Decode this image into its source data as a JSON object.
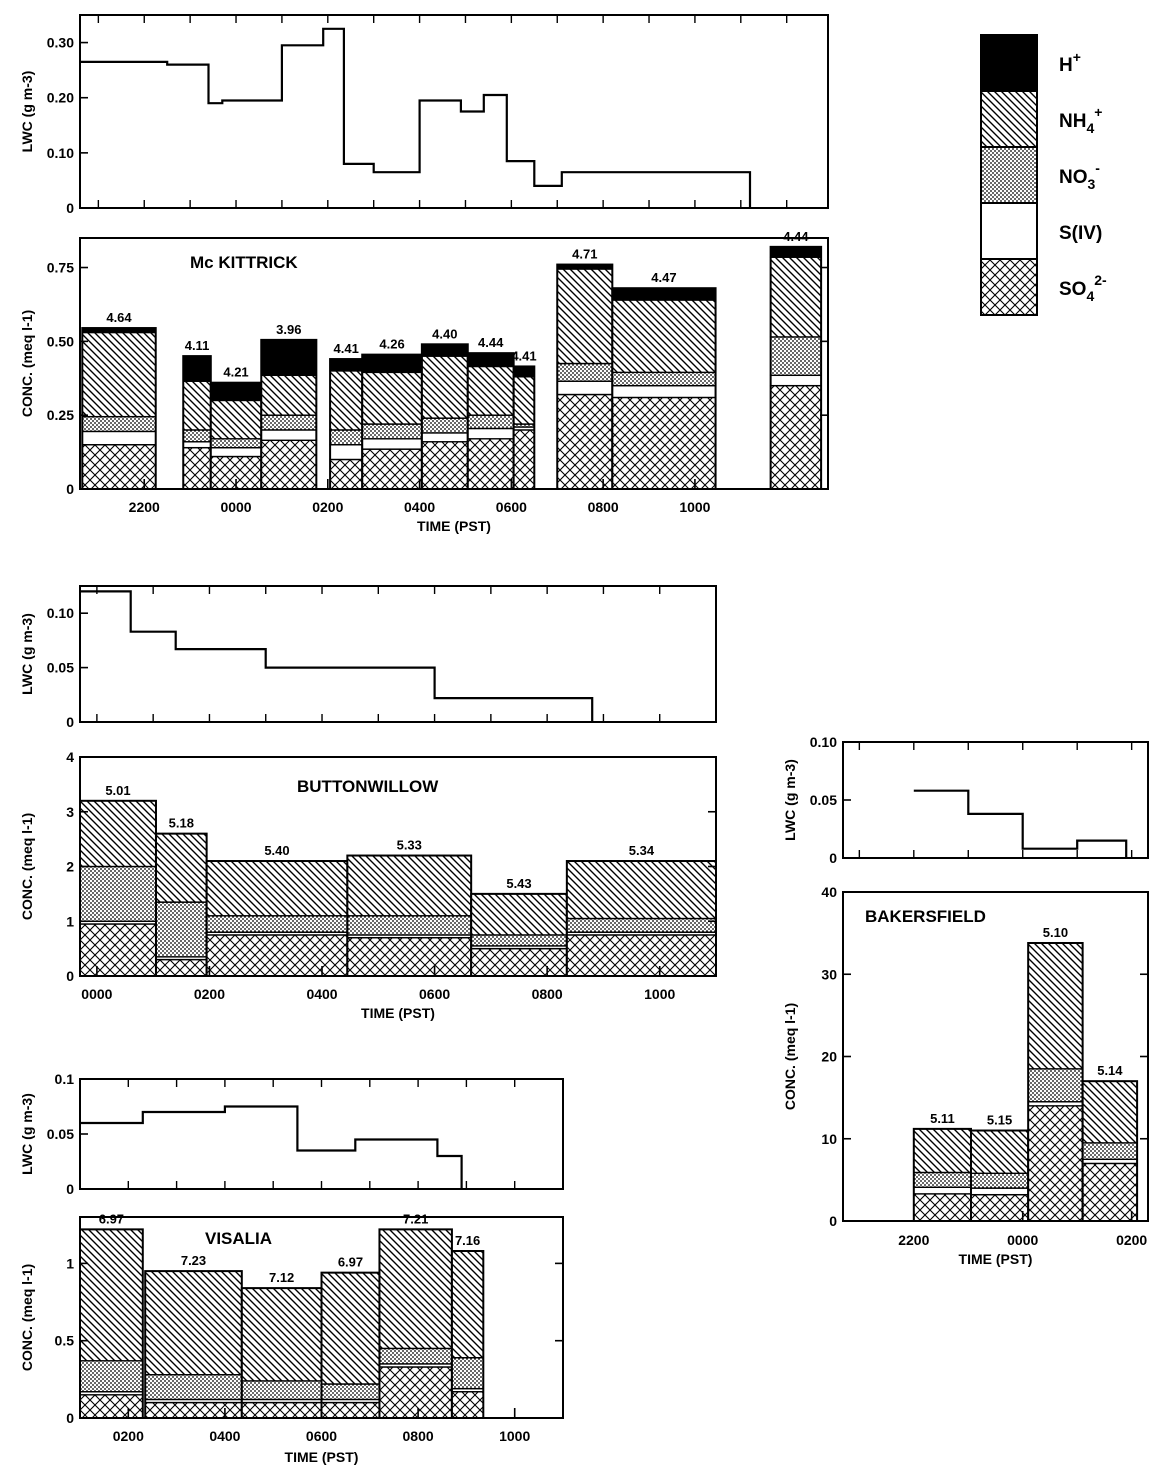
{
  "legend": {
    "items": [
      {
        "key": "h",
        "label": "H+",
        "base": "H",
        "sup": "+",
        "sub": ""
      },
      {
        "key": "nh4",
        "label": "NH4+",
        "base": "NH",
        "sub": "4",
        "sup": "+"
      },
      {
        "key": "no3",
        "label": "NO3-",
        "base": "NO",
        "sub": "3",
        "sup": "-"
      },
      {
        "key": "s4",
        "label": "S(IV)",
        "base": "S(IV)",
        "sub": "",
        "sup": ""
      },
      {
        "key": "so4",
        "label": "SO42-",
        "base": "SO",
        "sub": "4",
        "sup": "2-"
      }
    ]
  },
  "chart_data": [
    {
      "type": "bar",
      "name": "Mc KITTRICK",
      "title": "Mc KITTRICK",
      "xlabel": "TIME (PST)",
      "ylabel_lwc": "LWC (g m-3)",
      "ylabel_conc": "CONC. (meq l-1)",
      "lwc_ticks": [
        "0",
        "0.10",
        "0.20",
        "0.30"
      ],
      "conc_ticks": [
        "0",
        "0.25",
        "0.50",
        "0.75"
      ],
      "x_ticks": [
        "2200",
        "0000",
        "0200",
        "0400",
        "0600",
        "0800",
        "1000"
      ],
      "lwc_ylim": [
        0,
        0.35
      ],
      "conc_ylim": [
        0,
        0.85
      ],
      "lwc_steps": [
        {
          "t0": 20.6,
          "t1": 22.5,
          "v": 0.265
        },
        {
          "t0": 22.5,
          "t1": 23.4,
          "v": 0.26
        },
        {
          "t0": 23.4,
          "t1": 23.7,
          "v": 0.19
        },
        {
          "t0": 23.7,
          "t1": 25.0,
          "v": 0.195
        },
        {
          "t0": 25.0,
          "t1": 25.9,
          "v": 0.295
        },
        {
          "t0": 25.9,
          "t1": 26.35,
          "v": 0.325
        },
        {
          "t0": 26.35,
          "t1": 27.0,
          "v": 0.08
        },
        {
          "t0": 27.0,
          "t1": 28.0,
          "v": 0.065
        },
        {
          "t0": 28.0,
          "t1": 28.9,
          "v": 0.195
        },
        {
          "t0": 28.9,
          "t1": 29.4,
          "v": 0.175
        },
        {
          "t0": 29.4,
          "t1": 29.9,
          "v": 0.205
        },
        {
          "t0": 29.9,
          "t1": 30.5,
          "v": 0.085
        },
        {
          "t0": 30.5,
          "t1": 31.1,
          "v": 0.04
        },
        {
          "t0": 31.1,
          "t1": 35.2,
          "v": 0.065
        }
      ],
      "bars": [
        {
          "t0": 20.65,
          "t1": 22.25,
          "ph": "4.64",
          "so4": 0.15,
          "s4": 0.045,
          "no3": 0.05,
          "nh4": 0.285,
          "h": 0.015
        },
        {
          "t0": 22.85,
          "t1": 23.45,
          "ph": "4.11",
          "so4": 0.14,
          "s4": 0.02,
          "no3": 0.04,
          "nh4": 0.165,
          "h": 0.085
        },
        {
          "t0": 23.45,
          "t1": 24.55,
          "ph": "4.21",
          "so4": 0.11,
          "s4": 0.03,
          "no3": 0.03,
          "nh4": 0.13,
          "h": 0.06
        },
        {
          "t0": 24.55,
          "t1": 25.75,
          "ph": "3.96",
          "so4": 0.165,
          "s4": 0.035,
          "no3": 0.05,
          "nh4": 0.135,
          "h": 0.12
        },
        {
          "t0": 26.05,
          "t1": 26.75,
          "ph": "4.41",
          "so4": 0.1,
          "s4": 0.05,
          "no3": 0.05,
          "nh4": 0.2,
          "h": 0.04
        },
        {
          "t0": 26.75,
          "t1": 28.05,
          "ph": "4.26",
          "so4": 0.135,
          "s4": 0.035,
          "no3": 0.05,
          "nh4": 0.175,
          "h": 0.06
        },
        {
          "t0": 28.05,
          "t1": 29.05,
          "ph": "4.40",
          "so4": 0.16,
          "s4": 0.03,
          "no3": 0.05,
          "nh4": 0.21,
          "h": 0.04
        },
        {
          "t0": 29.05,
          "t1": 30.05,
          "ph": "4.44",
          "so4": 0.17,
          "s4": 0.035,
          "no3": 0.045,
          "nh4": 0.165,
          "h": 0.045
        },
        {
          "t0": 30.05,
          "t1": 30.5,
          "ph": "4.41",
          "so4": 0.2,
          "s4": 0.01,
          "no3": 0.01,
          "nh4": 0.16,
          "h": 0.035
        },
        {
          "t0": 31.0,
          "t1": 32.2,
          "ph": "4.71",
          "so4": 0.32,
          "s4": 0.045,
          "no3": 0.06,
          "nh4": 0.32,
          "h": 0.015
        },
        {
          "t0": 32.2,
          "t1": 34.45,
          "ph": "4.47",
          "so4": 0.31,
          "s4": 0.04,
          "no3": 0.045,
          "nh4": 0.245,
          "h": 0.04
        },
        {
          "t0": 35.65,
          "t1": 36.75,
          "ph": "4.44",
          "so4": 0.35,
          "s4": 0.035,
          "no3": 0.13,
          "nh4": 0.27,
          "h": 0.035
        }
      ]
    },
    {
      "type": "bar",
      "name": "BUTTONWILLOW",
      "title": "BUTTONWILLOW",
      "xlabel": "TIME (PST)",
      "ylabel_lwc": "LWC (g m-3)",
      "ylabel_conc": "CONC. (meq l-1)",
      "lwc_ticks": [
        "0",
        "0.05",
        "0.10"
      ],
      "conc_ticks": [
        "0",
        "1",
        "2",
        "3",
        "4"
      ],
      "x_ticks": [
        "0000",
        "0200",
        "0400",
        "0600",
        "0800",
        "1000"
      ],
      "lwc_ylim": [
        0,
        0.125
      ],
      "conc_ylim": [
        0,
        4
      ],
      "lwc_steps": [
        {
          "t0": 23.7,
          "t1": 24.6,
          "v": 0.12
        },
        {
          "t0": 24.6,
          "t1": 25.4,
          "v": 0.083
        },
        {
          "t0": 25.4,
          "t1": 27.0,
          "v": 0.067
        },
        {
          "t0": 27.0,
          "t1": 30.0,
          "v": 0.05
        },
        {
          "t0": 30.0,
          "t1": 32.8,
          "v": 0.022
        }
      ],
      "bars": [
        {
          "t0": 23.7,
          "t1": 25.05,
          "ph": "5.01",
          "so4": 0.95,
          "s4": 0.05,
          "no3": 1.0,
          "nh4": 1.2,
          "h": 0.0
        },
        {
          "t0": 25.05,
          "t1": 25.95,
          "ph": "5.18",
          "so4": 0.3,
          "s4": 0.05,
          "no3": 1.0,
          "nh4": 1.25,
          "h": 0.0
        },
        {
          "t0": 25.95,
          "t1": 28.45,
          "ph": "5.40",
          "so4": 0.75,
          "s4": 0.05,
          "no3": 0.3,
          "nh4": 1.0,
          "h": 0.0
        },
        {
          "t0": 28.45,
          "t1": 30.65,
          "ph": "5.33",
          "so4": 0.7,
          "s4": 0.05,
          "no3": 0.35,
          "nh4": 1.1,
          "h": 0.0
        },
        {
          "t0": 30.65,
          "t1": 32.35,
          "ph": "5.43",
          "so4": 0.5,
          "s4": 0.05,
          "no3": 0.2,
          "nh4": 0.75,
          "h": 0.0
        },
        {
          "t0": 32.35,
          "t1": 35.0,
          "ph": "5.34",
          "so4": 0.75,
          "s4": 0.05,
          "no3": 0.25,
          "nh4": 1.05,
          "h": 0.0
        }
      ]
    },
    {
      "type": "bar",
      "name": "BAKERSFIELD",
      "title": "BAKERSFIELD",
      "xlabel": "TIME (PST)",
      "ylabel_lwc": "LWC (g m-3)",
      "ylabel_conc": "CONC. (meq l-1)",
      "lwc_ticks": [
        "0",
        "0.05",
        "0.10"
      ],
      "conc_ticks": [
        "0",
        "10",
        "20",
        "30",
        "40"
      ],
      "x_ticks": [
        "2200",
        "0000",
        "0200"
      ],
      "lwc_ylim": [
        0,
        0.1
      ],
      "conc_ylim": [
        0,
        40
      ],
      "lwc_steps": [
        {
          "t0": 22.0,
          "t1": 23.0,
          "v": 0.058
        },
        {
          "t0": 23.0,
          "t1": 24.0,
          "v": 0.038
        },
        {
          "t0": 24.0,
          "t1": 25.0,
          "v": 0.008
        },
        {
          "t0": 25.0,
          "t1": 25.9,
          "v": 0.015
        }
      ],
      "bars": [
        {
          "t0": 22.0,
          "t1": 23.05,
          "ph": "5.11",
          "so4": 3.3,
          "s4": 0.8,
          "no3": 1.8,
          "nh4": 5.3,
          "h": 0.0
        },
        {
          "t0": 23.05,
          "t1": 24.1,
          "ph": "5.15",
          "so4": 3.2,
          "s4": 0.8,
          "no3": 1.8,
          "nh4": 5.2,
          "h": 0.0
        },
        {
          "t0": 24.1,
          "t1": 25.1,
          "ph": "5.10",
          "so4": 14.0,
          "s4": 0.5,
          "no3": 4.0,
          "nh4": 15.3,
          "h": 0.0
        },
        {
          "t0": 25.1,
          "t1": 26.1,
          "ph": "5.14",
          "so4": 7.0,
          "s4": 0.5,
          "no3": 2.0,
          "nh4": 7.5,
          "h": 0.0
        }
      ]
    },
    {
      "type": "bar",
      "name": "VISALIA",
      "title": "VISALIA",
      "xlabel": "TIME (PST)",
      "ylabel_lwc": "LWC (g m-3)",
      "ylabel_conc": "CONC. (meq l-1)",
      "lwc_ticks": [
        "0",
        "0.05",
        "0.1"
      ],
      "conc_ticks": [
        "0",
        "0.5",
        "1"
      ],
      "x_ticks": [
        "0200",
        "0400",
        "0600",
        "0800",
        "1000"
      ],
      "lwc_ylim": [
        0,
        0.1
      ],
      "conc_ylim": [
        0,
        1.3
      ],
      "lwc_steps": [
        {
          "t0": 25.0,
          "t1": 26.3,
          "v": 0.06
        },
        {
          "t0": 26.3,
          "t1": 28.0,
          "v": 0.07
        },
        {
          "t0": 28.0,
          "t1": 29.5,
          "v": 0.075
        },
        {
          "t0": 29.5,
          "t1": 30.7,
          "v": 0.035
        },
        {
          "t0": 30.7,
          "t1": 32.4,
          "v": 0.045
        },
        {
          "t0": 32.4,
          "t1": 32.9,
          "v": 0.03
        }
      ],
      "bars": [
        {
          "t0": 25.0,
          "t1": 26.3,
          "ph": "6.97",
          "so4": 0.15,
          "s4": 0.02,
          "no3": 0.2,
          "nh4": 0.85,
          "h": 0.0
        },
        {
          "t0": 26.35,
          "t1": 28.35,
          "ph": "7.23",
          "so4": 0.1,
          "s4": 0.02,
          "no3": 0.16,
          "nh4": 0.67,
          "h": 0.0
        },
        {
          "t0": 28.35,
          "t1": 30.0,
          "ph": "7.12",
          "so4": 0.1,
          "s4": 0.02,
          "no3": 0.12,
          "nh4": 0.6,
          "h": 0.0
        },
        {
          "t0": 30.0,
          "t1": 31.2,
          "ph": "6.97",
          "so4": 0.1,
          "s4": 0.02,
          "no3": 0.1,
          "nh4": 0.72,
          "h": 0.0
        },
        {
          "t0": 31.2,
          "t1": 32.7,
          "ph": "7.21",
          "so4": 0.33,
          "s4": 0.02,
          "no3": 0.1,
          "nh4": 0.77,
          "h": 0.0
        },
        {
          "t0": 32.7,
          "t1": 33.35,
          "ph": "7.16",
          "so4": 0.17,
          "s4": 0.02,
          "no3": 0.2,
          "nh4": 0.69,
          "h": 0.0
        }
      ]
    }
  ]
}
